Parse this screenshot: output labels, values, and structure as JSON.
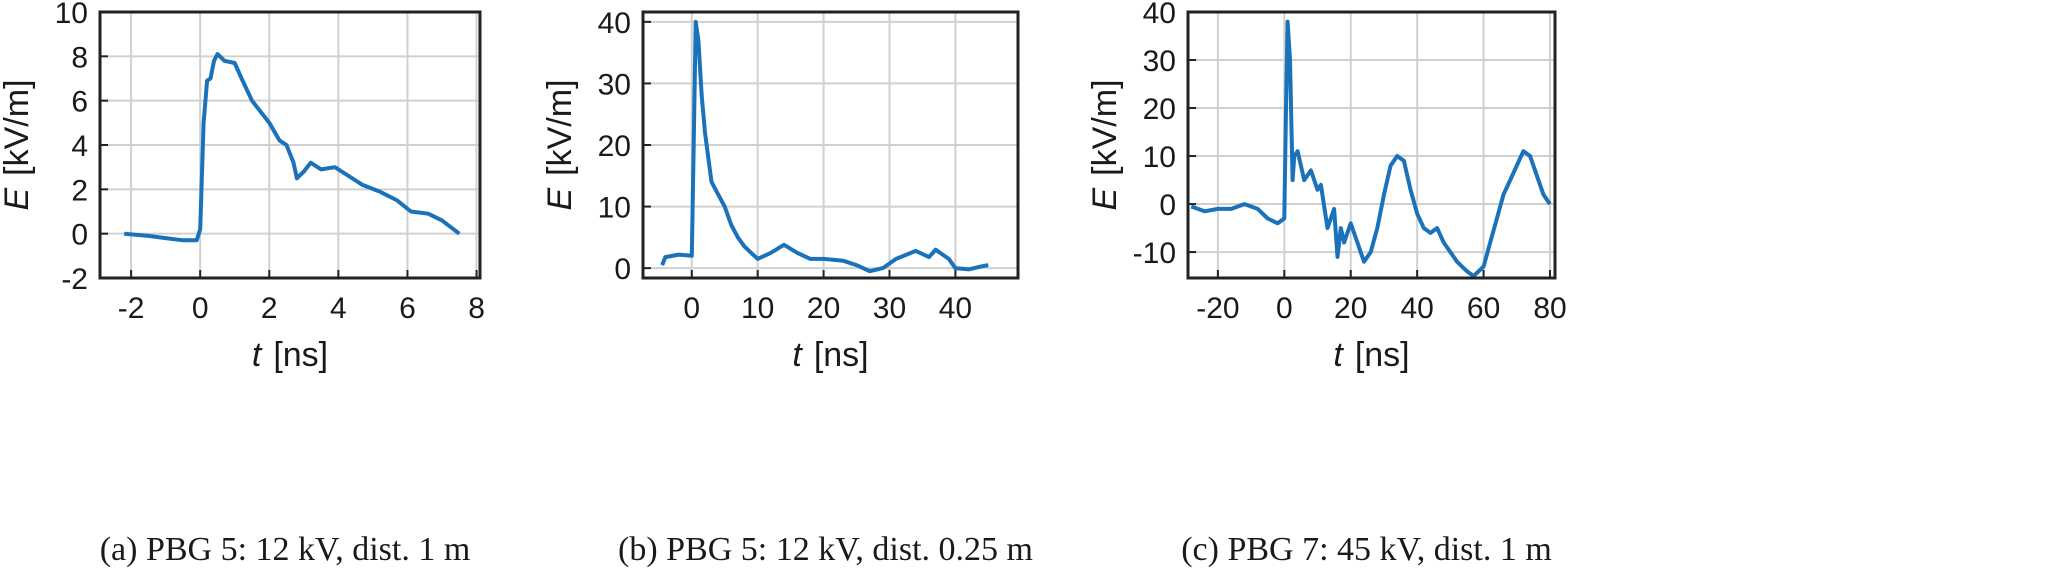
{
  "chart_data": [
    {
      "type": "line",
      "caption": "(a) PBG 5: 12 kV, dist. 1 m",
      "xlabel_symbol": "t",
      "xlabel_unit": "[ns]",
      "ylabel_symbol": "E",
      "ylabel_unit": "[kV/m]",
      "color": "#1a72bb",
      "grid": true,
      "xlim": [
        -2.9,
        8.1
      ],
      "ylim": [
        -2,
        10
      ],
      "xticks": [
        -2,
        0,
        2,
        4,
        6,
        8
      ],
      "yticks": [
        -2,
        0,
        2,
        4,
        6,
        8,
        10
      ],
      "x": [
        -2.2,
        -1.5,
        -1,
        -0.5,
        -0.1,
        0,
        0.1,
        0.2,
        0.3,
        0.4,
        0.5,
        0.7,
        1,
        1.2,
        1.5,
        2,
        2.3,
        2.5,
        2.7,
        2.8,
        3,
        3.2,
        3.5,
        3.9,
        4.3,
        4.7,
        5.2,
        5.7,
        6.1,
        6.6,
        7,
        7.5
      ],
      "values": [
        0,
        -0.1,
        -0.2,
        -0.3,
        -0.3,
        0.2,
        5,
        6.9,
        7,
        7.8,
        8.1,
        7.8,
        7.7,
        7,
        6,
        5,
        4.2,
        4,
        3.2,
        2.5,
        2.8,
        3.2,
        2.9,
        3,
        2.6,
        2.2,
        1.9,
        1.5,
        1.0,
        0.9,
        0.6,
        0
      ]
    },
    {
      "type": "line",
      "caption": "(b) PBG 5: 12 kV, dist. 0.25 m",
      "xlabel_symbol": "t",
      "xlabel_unit": "[ns]",
      "ylabel_symbol": "E",
      "ylabel_unit": "[kV/m]",
      "color": "#1a72bb",
      "grid": true,
      "xlim": [
        -7.4,
        49.5
      ],
      "ylim": [
        -1.6,
        41.6
      ],
      "xticks": [
        0,
        10,
        20,
        30,
        40
      ],
      "yticks": [
        0,
        10,
        20,
        30,
        40
      ],
      "x": [
        -4.5,
        -4,
        -2,
        0,
        0.3,
        0.6,
        1,
        1.5,
        2,
        3,
        4,
        5,
        6,
        7,
        8,
        9,
        10,
        12,
        14,
        16,
        18,
        20,
        23,
        25,
        27,
        29,
        31,
        34,
        36,
        37,
        39,
        40,
        42,
        44,
        45
      ],
      "values": [
        0.5,
        1.8,
        2.2,
        2.0,
        20,
        40,
        37,
        28,
        22,
        14,
        12,
        10,
        7,
        5,
        3.5,
        2.5,
        1.5,
        2.5,
        3.8,
        2.5,
        1.5,
        1.5,
        1.2,
        0.5,
        -0.5,
        0,
        1.5,
        2.8,
        1.8,
        3,
        1.5,
        0,
        -0.2,
        0.3,
        0.5
      ]
    },
    {
      "type": "line",
      "caption": "(c) PBG 7: 45 kV, dist. 1 m",
      "xlabel_symbol": "t",
      "xlabel_unit": "[ns]",
      "ylabel_symbol": "E",
      "ylabel_unit": "[kV/m]",
      "color": "#1a72bb",
      "grid": true,
      "xlim": [
        -29,
        81.5
      ],
      "ylim": [
        -15.4,
        40
      ],
      "xticks": [
        -20,
        0,
        20,
        40,
        60,
        80
      ],
      "yticks": [
        -10,
        0,
        10,
        20,
        30,
        40
      ],
      "x": [
        -28,
        -24,
        -20,
        -16,
        -12,
        -8,
        -5,
        -2,
        0,
        0.5,
        1,
        1.7,
        2.5,
        3,
        4,
        6,
        8,
        10,
        11,
        13,
        15,
        16,
        17,
        18,
        20,
        22,
        24,
        26,
        28,
        30,
        32,
        34,
        36,
        38,
        40,
        42,
        44,
        46,
        48,
        50,
        52,
        55,
        57,
        60,
        62,
        64,
        66,
        68,
        70,
        72,
        74,
        76,
        78,
        80
      ],
      "values": [
        -0.5,
        -1.5,
        -1,
        -1,
        0,
        -1,
        -3,
        -4,
        -3,
        20,
        38,
        30,
        5,
        10,
        11,
        5,
        7,
        3,
        4,
        -5,
        -1,
        -11,
        -5,
        -8,
        -4,
        -8,
        -12,
        -10,
        -5,
        2,
        8,
        10,
        9,
        3,
        -2,
        -5,
        -6,
        -5,
        -8,
        -10,
        -12,
        -14,
        -15,
        -13,
        -8,
        -3,
        2,
        5,
        8,
        11,
        10,
        6,
        2,
        0
      ]
    }
  ]
}
